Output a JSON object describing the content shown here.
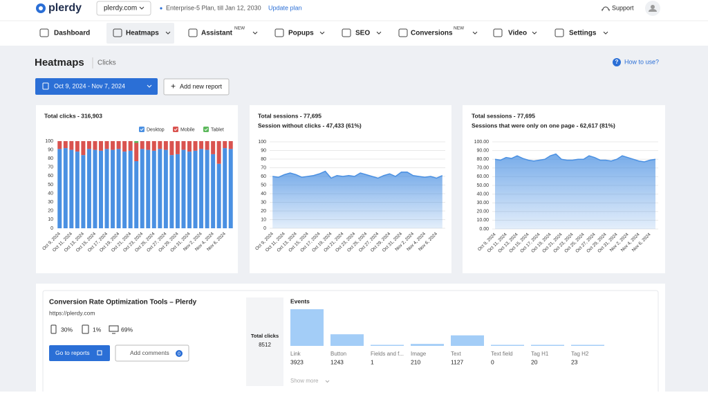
{
  "header": {
    "logo": "plerdy",
    "site": "plerdy.com",
    "plan": "Enterprise-5 Plan, till Jan 12, 2030",
    "update": "Update plan",
    "support": "Support"
  },
  "nav": [
    {
      "label": "Dashboard"
    },
    {
      "label": "Heatmaps"
    },
    {
      "label": "Assistant",
      "badge": "NEW"
    },
    {
      "label": "Popups"
    },
    {
      "label": "SEO"
    },
    {
      "label": "Conversions",
      "badge": "NEW"
    },
    {
      "label": "Video"
    },
    {
      "label": "Settings"
    }
  ],
  "page": {
    "title": "Heatmaps",
    "subtitle": "Clicks",
    "help": "How to use?",
    "date_range": "Oct 9, 2024 - Nov 7, 2024",
    "add_report": "Add new report"
  },
  "chart_data": [
    {
      "type": "bar",
      "stacked": true,
      "title": "Total clicks - 316,903",
      "legend": "top-right",
      "grid": false,
      "categories": [
        "Oct 9, 2024",
        null,
        "Oct 11, 2024",
        null,
        "Oct 13, 2024",
        null,
        "Oct 15, 2024",
        null,
        "Oct 17, 2024",
        null,
        "Oct 19, 2024",
        null,
        "Oct 21, 2024",
        null,
        "Oct 23, 2024",
        null,
        "Oct 25, 2024",
        null,
        "Oct 27, 2024",
        null,
        "Oct 29, 2024",
        null,
        "Oct 31, 2024",
        null,
        "Nov 2, 2024",
        null,
        "Nov 4, 2024",
        null,
        "Nov 6, 2024",
        null
      ],
      "series": [
        {
          "name": "Desktop",
          "color": "#4a90e2",
          "values": [
            91,
            92,
            90,
            88,
            84,
            91,
            90,
            89,
            91,
            90,
            91,
            88,
            89,
            77,
            91,
            90,
            89,
            91,
            90,
            84,
            85,
            90,
            88,
            89,
            91,
            90,
            85,
            74,
            92,
            91
          ]
        },
        {
          "name": "Mobile",
          "color": "#d9534f",
          "values": [
            9,
            8,
            10,
            12,
            16,
            9,
            10,
            11,
            9,
            10,
            9,
            12,
            11,
            21,
            9,
            10,
            11,
            9,
            10,
            16,
            15,
            10,
            12,
            11,
            9,
            10,
            15,
            26,
            8,
            9
          ]
        },
        {
          "name": "Tablet",
          "color": "#5cb85c",
          "values": [
            0,
            0,
            0,
            0,
            0,
            0,
            0,
            0,
            0,
            0,
            0,
            0,
            0,
            2,
            0,
            0,
            0,
            0,
            0,
            0,
            0,
            0,
            0,
            0,
            0,
            0,
            0,
            0,
            0,
            0
          ]
        }
      ],
      "ylim": [
        0,
        100
      ],
      "yticks": [
        0,
        10,
        20,
        30,
        40,
        50,
        60,
        70,
        80,
        90,
        100
      ]
    },
    {
      "type": "area",
      "title": "Total sessions - 77,695",
      "subtitle": "Session without clicks - 47,433 (61%)",
      "grid": true,
      "color": "#4a90e2",
      "categories": [
        "Oct 9, 2024",
        null,
        "Oct 11, 2024",
        null,
        "Oct 13, 2024",
        null,
        "Oct 15, 2024",
        null,
        "Oct 17, 2024",
        null,
        "Oct 19, 2024",
        null,
        "Oct 21, 2024",
        null,
        "Oct 23, 2024",
        null,
        "Oct 25, 2024",
        null,
        "Oct 27, 2024",
        null,
        "Oct 29, 2024",
        null,
        "Oct 31, 2024",
        null,
        "Nov 2, 2024",
        null,
        "Nov 4, 2024",
        null,
        "Nov 6, 2024",
        null
      ],
      "values": [
        60,
        59,
        62,
        64,
        62,
        59,
        60,
        61,
        63,
        66,
        58,
        61,
        60,
        61,
        60,
        64,
        62,
        60,
        58,
        61,
        63,
        60,
        65,
        65,
        61,
        60,
        59,
        60,
        58,
        61
      ],
      "ylim": [
        0,
        100
      ],
      "yticks": [
        0,
        10,
        20,
        30,
        40,
        50,
        60,
        70,
        80,
        90,
        100
      ]
    },
    {
      "type": "area",
      "title": "Total sessions - 77,695",
      "subtitle": "Sessions that were only on one page - 62,617 (81%)",
      "grid": true,
      "color": "#4a90e2",
      "categories": [
        "Oct 9, 2024",
        null,
        "Oct 11, 2024",
        null,
        "Oct 13, 2024",
        null,
        "Oct 15, 2024",
        null,
        "Oct 17, 2024",
        null,
        "Oct 19, 2024",
        null,
        "Oct 21, 2024",
        null,
        "Oct 23, 2024",
        null,
        "Oct 25, 2024",
        null,
        "Oct 27, 2024",
        null,
        "Oct 29, 2024",
        null,
        "Oct 31, 2024",
        null,
        "Nov 2, 2024",
        null,
        "Nov 4, 2024",
        null,
        "Nov 6, 2024",
        null
      ],
      "values": [
        80,
        79,
        82,
        81,
        84,
        81,
        79,
        78,
        79,
        80,
        84,
        86,
        80,
        79,
        79,
        80,
        80,
        84,
        82,
        79,
        79,
        78,
        80,
        84,
        82,
        80,
        78,
        77,
        79,
        80
      ],
      "ylim": [
        0,
        100
      ],
      "yticks": [
        {
          "value": 0,
          "label": "0.00"
        },
        {
          "value": 10,
          "label": "10.00"
        },
        {
          "value": 20,
          "label": "20.00"
        },
        {
          "value": 30,
          "label": "30.00"
        },
        {
          "value": 40,
          "label": "40.00"
        },
        {
          "value": 50,
          "label": "50.00"
        },
        {
          "value": 60,
          "label": "60.00"
        },
        {
          "value": 70,
          "label": "70.00"
        },
        {
          "value": 80,
          "label": "80.00"
        },
        {
          "value": 90,
          "label": "90.00"
        },
        {
          "value": 100,
          "label": "100.00"
        }
      ]
    },
    {
      "type": "bar",
      "title": "Events",
      "color": "#a3cdf7",
      "categories": [
        "Link",
        "Button",
        "Fields and f...",
        "Image",
        "Text",
        "Text field",
        "Tag H1",
        "Tag H2"
      ],
      "values": [
        3923,
        1243,
        1,
        210,
        1127,
        0,
        20,
        23
      ]
    }
  ],
  "report": {
    "title": "Conversion Rate Optimization Tools – Plerdy",
    "url": "https://plerdy.com",
    "devices": [
      "30%",
      "1%",
      "69%"
    ],
    "go": "Go to reports",
    "comments": "Add comments",
    "comments_count": 0,
    "total_label": "Total clicks",
    "total": 8512,
    "show_more": "Show more"
  }
}
